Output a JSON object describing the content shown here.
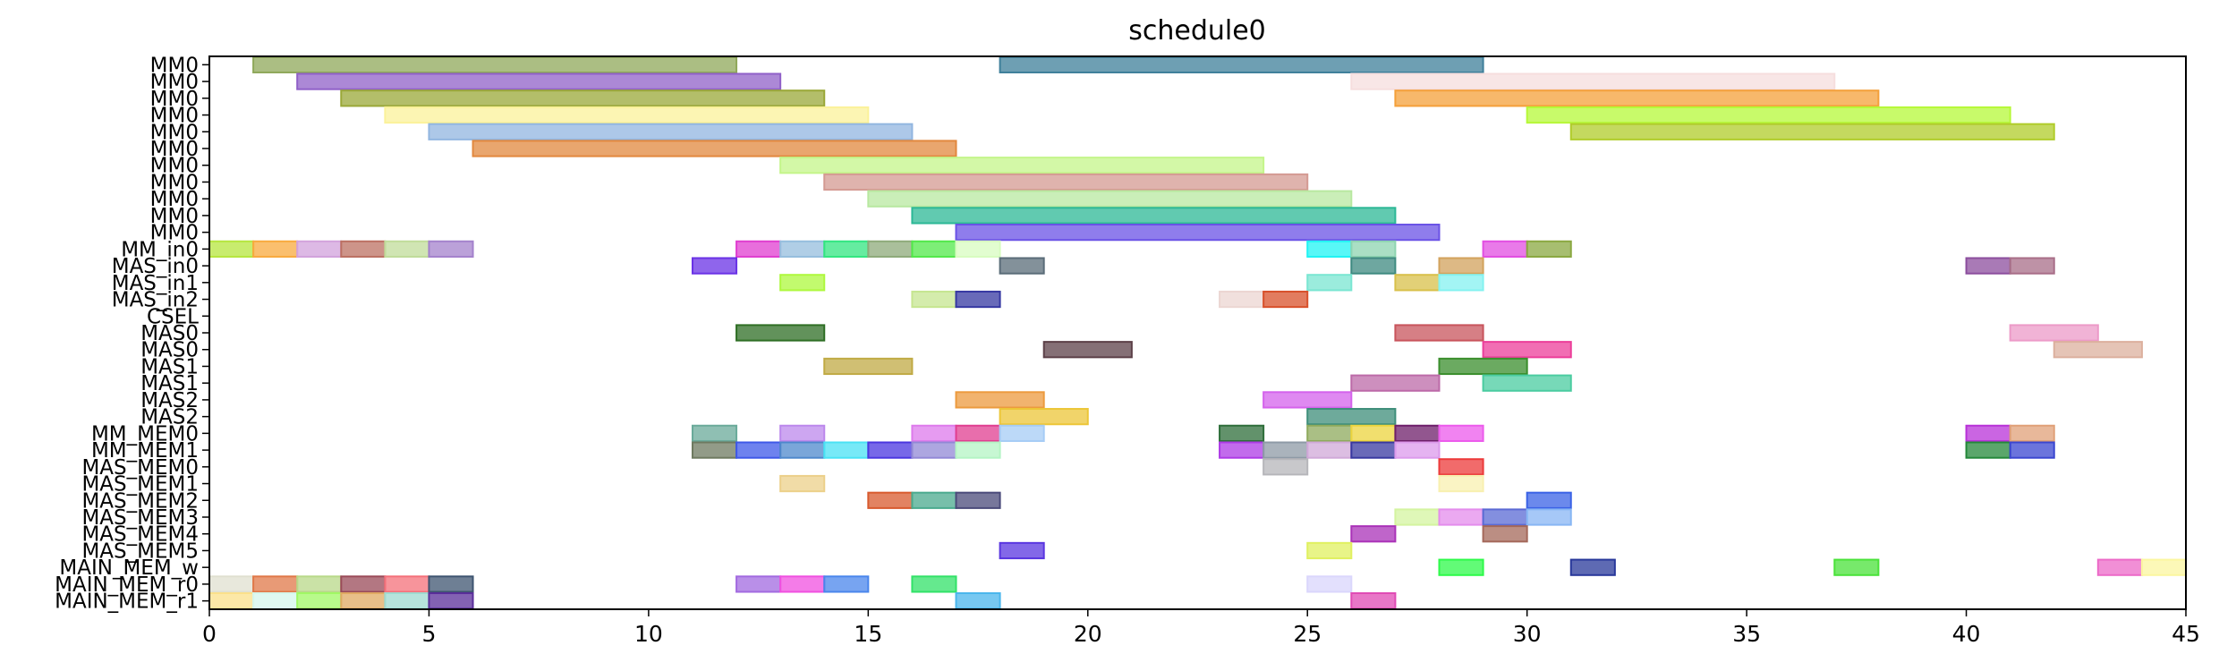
{
  "chart_data": {
    "type": "bar",
    "orientation": "horizontal",
    "title": "schedule0",
    "xlabel": "",
    "ylabel": "",
    "xlim": [
      0,
      45
    ],
    "xticks": [
      0,
      5,
      10,
      15,
      20,
      25,
      30,
      35,
      40,
      45
    ],
    "grid": false,
    "rows": [
      "MM0",
      "MM0",
      "MM0",
      "MM0",
      "MM0",
      "MM0",
      "MM0",
      "MM0",
      "MM0",
      "MM0",
      "MM0",
      "MM_in0",
      "MAS_in0",
      "MAS_in1",
      "MAS_in2",
      "CSEL",
      "MAS0",
      "MAS0",
      "MAS1",
      "MAS1",
      "MAS2",
      "MAS2",
      "MM_MEM0",
      "MM_MEM1",
      "MAS_MEM0",
      "MAS_MEM1",
      "MAS_MEM2",
      "MAS_MEM3",
      "MAS_MEM4",
      "MAS_MEM5",
      "MAIN_MEM_w",
      "MAIN_MEM_r0",
      "MAIN_MEM_r1"
    ],
    "bars": [
      {
        "row": 0,
        "start": 1,
        "end": 12,
        "color": "#8fa85a"
      },
      {
        "row": 0,
        "start": 18,
        "end": 29,
        "color": "#3e7f9a"
      },
      {
        "row": 1,
        "start": 2,
        "end": 13,
        "color": "#9060c8"
      },
      {
        "row": 1,
        "start": 26,
        "end": 37,
        "color": "#f6dede"
      },
      {
        "row": 2,
        "start": 3,
        "end": 14,
        "color": "#9aa838"
      },
      {
        "row": 2,
        "start": 27,
        "end": 38,
        "color": "#f4a03a"
      },
      {
        "row": 3,
        "start": 4,
        "end": 15,
        "color": "#fbf29a"
      },
      {
        "row": 3,
        "start": 30,
        "end": 41,
        "color": "#b6f838"
      },
      {
        "row": 4,
        "start": 5,
        "end": 16,
        "color": "#92b6e0"
      },
      {
        "row": 4,
        "start": 31,
        "end": 42,
        "color": "#b0cc2a"
      },
      {
        "row": 5,
        "start": 6,
        "end": 17,
        "color": "#e2883e"
      },
      {
        "row": 6,
        "start": 13,
        "end": 24,
        "color": "#c4f58a"
      },
      {
        "row": 7,
        "start": 14,
        "end": 25,
        "color": "#d49a92"
      },
      {
        "row": 8,
        "start": 15,
        "end": 26,
        "color": "#b8e8a0"
      },
      {
        "row": 9,
        "start": 16,
        "end": 27,
        "color": "#2cb896"
      },
      {
        "row": 10,
        "start": 17,
        "end": 28,
        "color": "#6a52e6"
      },
      {
        "row": 11,
        "start": 0,
        "end": 1,
        "color": "#b6e63e"
      },
      {
        "row": 11,
        "start": 1,
        "end": 2,
        "color": "#f8aa3e"
      },
      {
        "row": 11,
        "start": 2,
        "end": 3,
        "color": "#d2a2dc"
      },
      {
        "row": 11,
        "start": 3,
        "end": 4,
        "color": "#bc7062"
      },
      {
        "row": 11,
        "start": 4,
        "end": 5,
        "color": "#c0dc9a"
      },
      {
        "row": 11,
        "start": 5,
        "end": 6,
        "color": "#a482cc"
      },
      {
        "row": 11,
        "start": 12,
        "end": 13,
        "color": "#e03ed0"
      },
      {
        "row": 11,
        "start": 13,
        "end": 14,
        "color": "#96bede"
      },
      {
        "row": 11,
        "start": 14,
        "end": 15,
        "color": "#32e680"
      },
      {
        "row": 11,
        "start": 15,
        "end": 16,
        "color": "#8eaa7a"
      },
      {
        "row": 11,
        "start": 16,
        "end": 17,
        "color": "#52e84a"
      },
      {
        "row": 11,
        "start": 17,
        "end": 18,
        "color": "#d8fcc0"
      },
      {
        "row": 11,
        "start": 25,
        "end": 26,
        "color": "#20f4f4"
      },
      {
        "row": 11,
        "start": 26,
        "end": 27,
        "color": "#8ed4b0"
      },
      {
        "row": 11,
        "start": 29,
        "end": 30,
        "color": "#e24ee2"
      },
      {
        "row": 11,
        "start": 30,
        "end": 31,
        "color": "#8aa840"
      },
      {
        "row": 12,
        "start": 11,
        "end": 12,
        "color": "#6a32e6"
      },
      {
        "row": 12,
        "start": 18,
        "end": 19,
        "color": "#5a6c78"
      },
      {
        "row": 12,
        "start": 26,
        "end": 27,
        "color": "#3e8a80"
      },
      {
        "row": 12,
        "start": 28,
        "end": 29,
        "color": "#d2a25c"
      },
      {
        "row": 12,
        "start": 40,
        "end": 41,
        "color": "#8c4e9e"
      },
      {
        "row": 12,
        "start": 41,
        "end": 42,
        "color": "#a86e88"
      },
      {
        "row": 13,
        "start": 13,
        "end": 14,
        "color": "#aef83e"
      },
      {
        "row": 13,
        "start": 25,
        "end": 26,
        "color": "#7ae6d2"
      },
      {
        "row": 13,
        "start": 27,
        "end": 28,
        "color": "#d8c04a"
      },
      {
        "row": 13,
        "start": 28,
        "end": 29,
        "color": "#84f2f0"
      },
      {
        "row": 14,
        "start": 16,
        "end": 17,
        "color": "#c6e690"
      },
      {
        "row": 14,
        "start": 17,
        "end": 18,
        "color": "#3638a2"
      },
      {
        "row": 14,
        "start": 23,
        "end": 24,
        "color": "#ecd6d2"
      },
      {
        "row": 14,
        "start": 24,
        "end": 25,
        "color": "#d8502a"
      },
      {
        "row": 16,
        "start": 12,
        "end": 14,
        "color": "#2e6e24"
      },
      {
        "row": 16,
        "start": 27,
        "end": 29,
        "color": "#c8545c"
      },
      {
        "row": 16,
        "start": 41,
        "end": 43,
        "color": "#ec9ac8"
      },
      {
        "row": 17,
        "start": 19,
        "end": 21,
        "color": "#5c4048"
      },
      {
        "row": 17,
        "start": 29,
        "end": 31,
        "color": "#ec3e9a"
      },
      {
        "row": 17,
        "start": 42,
        "end": 44,
        "color": "#dcb09e"
      },
      {
        "row": 18,
        "start": 14,
        "end": 16,
        "color": "#c0aa44"
      },
      {
        "row": 18,
        "start": 28,
        "end": 30,
        "color": "#3a8e2c"
      },
      {
        "row": 19,
        "start": 26,
        "end": 28,
        "color": "#bc6aa8"
      },
      {
        "row": 19,
        "start": 29,
        "end": 31,
        "color": "#4acca0"
      },
      {
        "row": 20,
        "start": 17,
        "end": 19,
        "color": "#ec9a3e"
      },
      {
        "row": 20,
        "start": 24,
        "end": 26,
        "color": "#d462ec"
      },
      {
        "row": 21,
        "start": 18,
        "end": 20,
        "color": "#ecc638"
      },
      {
        "row": 21,
        "start": 25,
        "end": 27,
        "color": "#3e8e7a"
      },
      {
        "row": 22,
        "start": 11,
        "end": 12,
        "color": "#6aaa9a"
      },
      {
        "row": 22,
        "start": 13,
        "end": 14,
        "color": "#bc88ec"
      },
      {
        "row": 22,
        "start": 16,
        "end": 17,
        "color": "#de7aec"
      },
      {
        "row": 22,
        "start": 17,
        "end": 18,
        "color": "#e03e90"
      },
      {
        "row": 22,
        "start": 18,
        "end": 19,
        "color": "#a6ccf6"
      },
      {
        "row": 22,
        "start": 23,
        "end": 24,
        "color": "#2e6e3a"
      },
      {
        "row": 22,
        "start": 25,
        "end": 26,
        "color": "#8eaa5c"
      },
      {
        "row": 22,
        "start": 26,
        "end": 27,
        "color": "#ecd43e"
      },
      {
        "row": 22,
        "start": 27,
        "end": 28,
        "color": "#6e1e6a"
      },
      {
        "row": 22,
        "start": 28,
        "end": 29,
        "color": "#ec5aec"
      },
      {
        "row": 22,
        "start": 40,
        "end": 41,
        "color": "#b832d8"
      },
      {
        "row": 22,
        "start": 41,
        "end": 42,
        "color": "#e0a078"
      },
      {
        "row": 23,
        "start": 11,
        "end": 12,
        "color": "#6e7a60"
      },
      {
        "row": 23,
        "start": 12,
        "end": 13,
        "color": "#3e58e8"
      },
      {
        "row": 23,
        "start": 13,
        "end": 14,
        "color": "#4e88cc"
      },
      {
        "row": 23,
        "start": 14,
        "end": 15,
        "color": "#4ae2f4"
      },
      {
        "row": 23,
        "start": 15,
        "end": 16,
        "color": "#4a36e0"
      },
      {
        "row": 23,
        "start": 16,
        "end": 17,
        "color": "#9288d6"
      },
      {
        "row": 23,
        "start": 17,
        "end": 18,
        "color": "#b4f4c4"
      },
      {
        "row": 23,
        "start": 23,
        "end": 24,
        "color": "#ae3ae6"
      },
      {
        "row": 23,
        "start": 24,
        "end": 25,
        "color": "#8e9aa6"
      },
      {
        "row": 23,
        "start": 25,
        "end": 26,
        "color": "#d0a8d8"
      },
      {
        "row": 23,
        "start": 26,
        "end": 27,
        "color": "#3838a0"
      },
      {
        "row": 23,
        "start": 27,
        "end": 28,
        "color": "#dc9aec"
      },
      {
        "row": 23,
        "start": 40,
        "end": 41,
        "color": "#24883a"
      },
      {
        "row": 23,
        "start": 41,
        "end": 42,
        "color": "#3a46d0"
      },
      {
        "row": 24,
        "start": 24,
        "end": 25,
        "color": "#b6b6ba"
      },
      {
        "row": 24,
        "start": 28,
        "end": 29,
        "color": "#ec3a3a"
      },
      {
        "row": 25,
        "start": 13,
        "end": 14,
        "color": "#ecd08a"
      },
      {
        "row": 25,
        "start": 28,
        "end": 29,
        "color": "#f8f0b0"
      },
      {
        "row": 26,
        "start": 15,
        "end": 16,
        "color": "#d85a2e"
      },
      {
        "row": 26,
        "start": 16,
        "end": 17,
        "color": "#4aaa8e"
      },
      {
        "row": 26,
        "start": 17,
        "end": 18,
        "color": "#4a4a7a"
      },
      {
        "row": 26,
        "start": 30,
        "end": 31,
        "color": "#3a62e6"
      },
      {
        "row": 27,
        "start": 27,
        "end": 28,
        "color": "#d4f4a0"
      },
      {
        "row": 27,
        "start": 28,
        "end": 29,
        "color": "#e48cec"
      },
      {
        "row": 27,
        "start": 29,
        "end": 30,
        "color": "#5a6ad4"
      },
      {
        "row": 27,
        "start": 30,
        "end": 31,
        "color": "#88b6f4"
      },
      {
        "row": 28,
        "start": 26,
        "end": 27,
        "color": "#aa32b8"
      },
      {
        "row": 28,
        "start": 29,
        "end": 30,
        "color": "#a4685a"
      },
      {
        "row": 29,
        "start": 18,
        "end": 19,
        "color": "#5a36e0"
      },
      {
        "row": 29,
        "start": 25,
        "end": 26,
        "color": "#e0f060"
      },
      {
        "row": 30,
        "start": 28,
        "end": 29,
        "color": "#2efa4a"
      },
      {
        "row": 30,
        "start": 31,
        "end": 32,
        "color": "#28389a"
      },
      {
        "row": 30,
        "start": 37,
        "end": 38,
        "color": "#4ae23a"
      },
      {
        "row": 30,
        "start": 43,
        "end": 44,
        "color": "#ec6ac8"
      },
      {
        "row": 30,
        "start": 44,
        "end": 45,
        "color": "#fbf6a0"
      },
      {
        "row": 31,
        "start": 0,
        "end": 1,
        "color": "#e0e0d0"
      },
      {
        "row": 31,
        "start": 1,
        "end": 2,
        "color": "#e07848"
      },
      {
        "row": 31,
        "start": 2,
        "end": 3,
        "color": "#b8d888"
      },
      {
        "row": 31,
        "start": 3,
        "end": 4,
        "color": "#9a4a58"
      },
      {
        "row": 31,
        "start": 4,
        "end": 5,
        "color": "#f4707a"
      },
      {
        "row": 31,
        "start": 5,
        "end": 6,
        "color": "#3e5470"
      },
      {
        "row": 31,
        "start": 12,
        "end": 13,
        "color": "#a26ae0"
      },
      {
        "row": 31,
        "start": 13,
        "end": 14,
        "color": "#f050e0"
      },
      {
        "row": 31,
        "start": 14,
        "end": 15,
        "color": "#4a86ec"
      },
      {
        "row": 31,
        "start": 16,
        "end": 17,
        "color": "#32e268"
      },
      {
        "row": 31,
        "start": 25,
        "end": 26,
        "color": "#dad6fc"
      },
      {
        "row": 32,
        "start": 0,
        "end": 1,
        "color": "#fbe08a"
      },
      {
        "row": 32,
        "start": 1,
        "end": 2,
        "color": "#d4f6ec"
      },
      {
        "row": 32,
        "start": 2,
        "end": 3,
        "color": "#a0f864"
      },
      {
        "row": 32,
        "start": 3,
        "end": 4,
        "color": "#e0aa62"
      },
      {
        "row": 32,
        "start": 4,
        "end": 5,
        "color": "#9edad0"
      },
      {
        "row": 32,
        "start": 5,
        "end": 6,
        "color": "#5a2e9a"
      },
      {
        "row": 32,
        "start": 17,
        "end": 18,
        "color": "#4ab6ec"
      },
      {
        "row": 32,
        "start": 26,
        "end": 27,
        "color": "#e04ab4"
      }
    ]
  }
}
